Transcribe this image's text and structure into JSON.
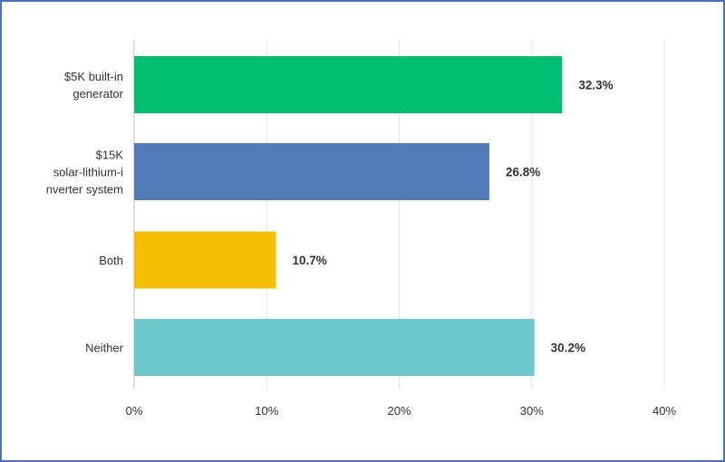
{
  "chart_data": {
    "type": "bar",
    "orientation": "horizontal",
    "categories": [
      "$5K built-in generator",
      "$15K solar-lithium-inverter system",
      "Both",
      "Neither"
    ],
    "category_label_lines": [
      [
        "$5K built-in",
        "generator"
      ],
      [
        "$15K",
        "solar-lithium-i",
        "nverter system"
      ],
      [
        "Both"
      ],
      [
        "Neither"
      ]
    ],
    "values": [
      32.3,
      26.8,
      10.7,
      30.2
    ],
    "value_labels": [
      "32.3%",
      "26.8%",
      "10.7%",
      "30.2%"
    ],
    "bar_colors": [
      "#00be6e",
      "#507cba",
      "#f7bd00",
      "#6bc8cd"
    ],
    "xlim": [
      0,
      40
    ],
    "x_ticks": [
      0,
      10,
      20,
      30,
      40
    ],
    "x_tick_labels": [
      "0%",
      "10%",
      "20%",
      "30%",
      "40%"
    ],
    "grid": true,
    "title": "",
    "xlabel": "",
    "ylabel": ""
  }
}
